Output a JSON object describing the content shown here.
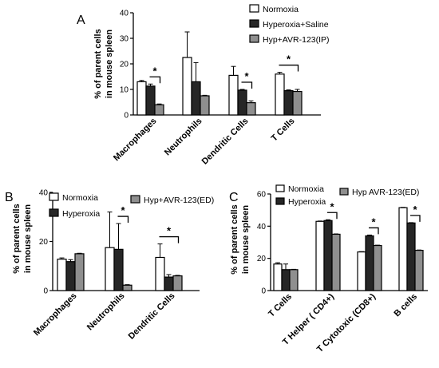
{
  "chart_data": [
    {
      "panel": "A",
      "type": "bar",
      "ylabel": "% of parent cells in mouse spleen",
      "ylim": [
        0,
        40
      ],
      "yticks": [
        0,
        10,
        20,
        30,
        40
      ],
      "categories": [
        "Macrophages",
        "Neutrophils",
        "Dendritic Cells",
        "T Cells"
      ],
      "series": [
        {
          "name": "Normoxia",
          "values": [
            13,
            22.5,
            15.5,
            16
          ],
          "errors": [
            0.5,
            10,
            3.5,
            0.7
          ],
          "color": "#ffffff"
        },
        {
          "name": "Hyperoxia+Saline",
          "values": [
            11.3,
            13,
            9.7,
            9.5
          ],
          "errors": [
            0.8,
            7.5,
            0.3,
            0.3
          ],
          "color": "#262626"
        },
        {
          "name": "Hyp+AVR-123(IP)",
          "values": [
            4,
            7.5,
            4.8,
            9.2
          ],
          "errors": [
            0.3,
            0.2,
            0.7,
            0.8
          ],
          "color": "#8f8f8f"
        }
      ],
      "significance": [
        {
          "category": 0,
          "from": 1,
          "to": 2,
          "label": "*"
        },
        {
          "category": 2,
          "from": 1,
          "to": 2,
          "label": "*"
        },
        {
          "category": 3,
          "from": 0,
          "to": 2,
          "label": "*"
        }
      ],
      "legend": "top-right"
    },
    {
      "panel": "B",
      "type": "bar",
      "ylabel": "% of parent cells in mouse spleen",
      "ylim": [
        0,
        40
      ],
      "yticks": [
        0,
        20,
        40
      ],
      "categories": [
        "Macrophages",
        "Neutrophils",
        "Dendritic Cells"
      ],
      "series": [
        {
          "name": "Normoxia",
          "values": [
            12.8,
            17.5,
            13.5
          ],
          "errors": [
            0.5,
            14.5,
            5.5
          ],
          "color": "#ffffff"
        },
        {
          "name": "Hyperoxia",
          "values": [
            11.8,
            16.8,
            5.5
          ],
          "errors": [
            0.8,
            10.5,
            1
          ],
          "color": "#262626"
        },
        {
          "name": "Hyp+AVR-123(ED)",
          "values": [
            15,
            2.2,
            6
          ],
          "errors": [
            0.2,
            0.2,
            0.2
          ],
          "color": "#8f8f8f"
        }
      ],
      "significance": [
        {
          "category": 1,
          "from": 1,
          "to": 2,
          "label": "*"
        },
        {
          "category": 2,
          "from": 0,
          "to": 2,
          "label": "*"
        }
      ],
      "legend": "top"
    },
    {
      "panel": "C",
      "type": "bar",
      "ylabel": "% of parent cells in mouse spleen",
      "ylim": [
        0,
        60
      ],
      "yticks": [
        0,
        20,
        40,
        60
      ],
      "categories": [
        "T Cells",
        "T Helper ( CD4+)",
        "T Cytotoxic (CD8+)",
        "B cells"
      ],
      "series": [
        {
          "name": "Normoxia",
          "values": [
            16.5,
            43,
            24,
            51.5
          ],
          "errors": [
            0.8,
            0.2,
            0.2,
            0.2
          ],
          "color": "#ffffff"
        },
        {
          "name": "Hyperoxia",
          "values": [
            13,
            43.5,
            34,
            42
          ],
          "errors": [
            3.5,
            0.5,
            0.5,
            0.2
          ],
          "color": "#262626"
        },
        {
          "name": "Hyp AVR-123(ED)",
          "values": [
            13,
            35,
            28,
            25
          ],
          "errors": [
            0.2,
            0.2,
            0.2,
            0.2
          ],
          "color": "#8f8f8f"
        }
      ],
      "significance": [
        {
          "category": 1,
          "from": 1,
          "to": 2,
          "label": "*"
        },
        {
          "category": 2,
          "from": 1,
          "to": 2,
          "label": "*"
        },
        {
          "category": 3,
          "from": 1,
          "to": 2,
          "label": "*"
        }
      ],
      "legend": "top"
    }
  ]
}
